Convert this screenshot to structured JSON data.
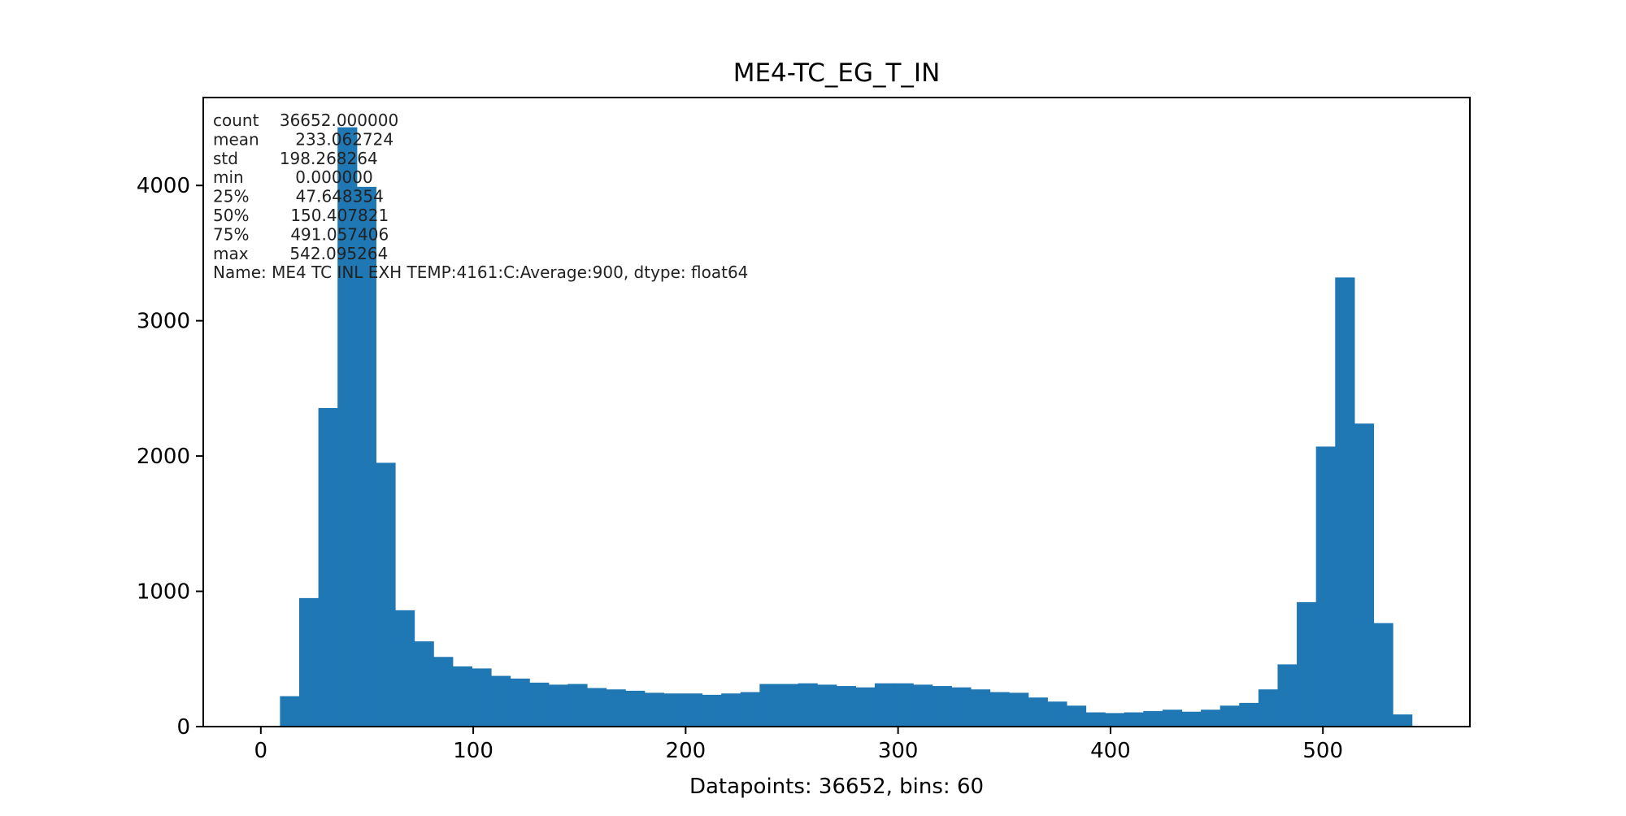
{
  "chart_data": {
    "type": "bar",
    "title": "ME4-TC_EG_T_IN",
    "xlabel": "Datapoints: 36652, bins: 60",
    "ylabel": "",
    "xlim": [
      -27.1,
      569.2
    ],
    "ylim": [
      0,
      4650
    ],
    "bin_start": 0.0,
    "bin_width": 9.0315877,
    "bar_color": "#1f77b4",
    "grid": false,
    "x_ticks": [
      0,
      100,
      200,
      300,
      400,
      500
    ],
    "y_ticks": [
      0,
      1000,
      2000,
      3000,
      4000
    ],
    "x_tick_labels": [
      "0",
      "100",
      "200",
      "300",
      "400",
      "500"
    ],
    "y_tick_labels": [
      "0",
      "1000",
      "2000",
      "3000",
      "4000"
    ],
    "values": [
      0,
      225,
      950,
      2355,
      4430,
      3990,
      1950,
      860,
      630,
      515,
      445,
      430,
      375,
      355,
      325,
      310,
      315,
      285,
      275,
      265,
      250,
      245,
      245,
      235,
      245,
      255,
      315,
      315,
      320,
      310,
      300,
      290,
      320,
      320,
      310,
      300,
      290,
      275,
      255,
      250,
      215,
      185,
      155,
      105,
      100,
      105,
      115,
      125,
      110,
      125,
      155,
      175,
      275,
      460,
      920,
      2070,
      3320,
      2240,
      765,
      90
    ],
    "stats_lines": [
      "count    36652.000000",
      "mean       233.062724",
      "std        198.268264",
      "min          0.000000",
      "25%         47.648354",
      "50%        150.407821",
      "75%        491.057406",
      "max        542.095264",
      "Name: ME4 TC INL EXH TEMP:4161:C:Average:900, dtype: float64"
    ]
  }
}
